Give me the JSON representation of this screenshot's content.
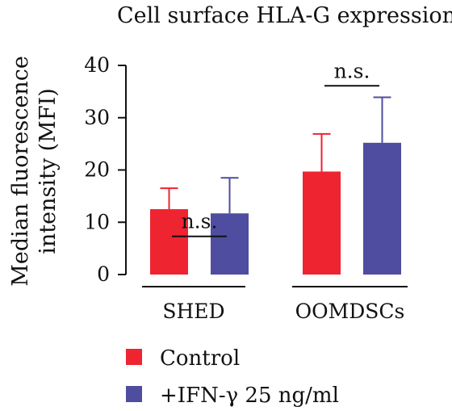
{
  "chart_data": {
    "type": "bar",
    "title": "Cell surface HLA-G expression",
    "ylabel_line1": "Median fluorescence",
    "ylabel_line2": "intensity (MFI)",
    "ylim": [
      0,
      40
    ],
    "yticks": [
      0,
      10,
      20,
      30,
      40
    ],
    "categories": [
      "SHED",
      "OOMDSCs"
    ],
    "series": [
      {
        "name": "Control",
        "color": "#ee2430",
        "values": [
          12.5,
          19.7
        ],
        "errors": [
          4.0,
          7.2
        ]
      },
      {
        "name": "+IFN-γ 25 ng/ml",
        "color": "#4f4d9f",
        "values": [
          11.7,
          25.2
        ],
        "errors": [
          6.8,
          8.7
        ]
      }
    ],
    "annotations": [
      "n.s.",
      "n.s."
    ],
    "legend_position": "bottom-left",
    "grid": false
  }
}
